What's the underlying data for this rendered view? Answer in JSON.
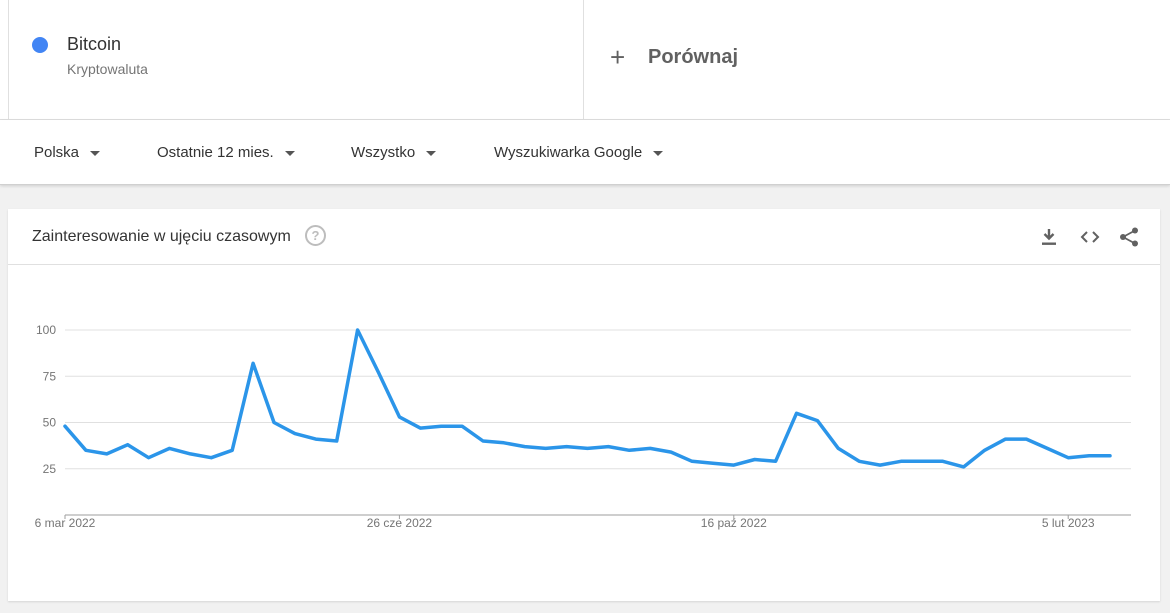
{
  "term": {
    "name": "Bitcoin",
    "type": "Kryptowaluta",
    "color": "#4285f4"
  },
  "compare": {
    "label": "Porównaj",
    "icon": "plus-icon"
  },
  "filters": [
    {
      "label": "Polska"
    },
    {
      "label": "Ostatnie 12 mies."
    },
    {
      "label": "Wszystko"
    },
    {
      "label": "Wyszukiwarka Google"
    }
  ],
  "card": {
    "title": "Zainteresowanie w ujęciu czasowym",
    "help_icon": "help-circle-icon",
    "tools": [
      "download-icon",
      "embed-code-icon",
      "share-icon"
    ]
  },
  "chart_data": {
    "type": "line",
    "ylim": [
      0,
      100
    ],
    "yticks": [
      25,
      50,
      75,
      100
    ],
    "grid": true,
    "line_color": "#2b95e9",
    "x_tick_labels": [
      "6 mar 2022",
      "26 cze 2022",
      "16 paź 2022",
      "5 lut 2023"
    ],
    "x_tick_index": [
      0,
      16,
      32,
      48
    ],
    "series": [
      {
        "values": [
          48,
          35,
          33,
          38,
          31,
          36,
          33,
          31,
          35,
          82,
          50,
          44,
          41,
          40,
          100,
          77,
          53,
          47,
          48,
          48,
          40,
          39,
          37,
          36,
          37,
          36,
          37,
          35,
          36,
          34,
          29,
          28,
          27,
          30,
          29,
          55,
          51,
          36,
          29,
          27,
          29,
          29,
          29,
          26,
          35,
          41,
          41,
          36,
          31,
          32,
          32
        ]
      }
    ]
  }
}
